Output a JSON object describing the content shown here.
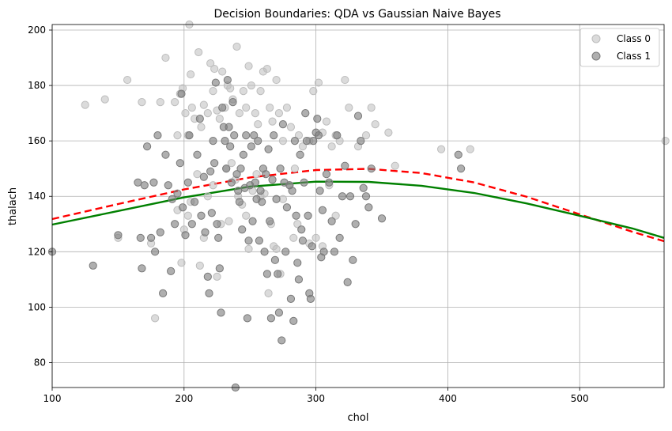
{
  "chart_data": {
    "type": "scatter",
    "title": "Decision Boundaries: QDA vs Gaussian Naive Bayes",
    "xlabel": "chol",
    "ylabel": "thalach",
    "xlim": [
      100,
      564
    ],
    "ylim": [
      71,
      202
    ],
    "x_ticks": [
      100,
      200,
      300,
      400,
      500
    ],
    "y_ticks": [
      80,
      100,
      120,
      140,
      160,
      180,
      200
    ],
    "grid": true,
    "legend_position": "top-right",
    "series": [
      {
        "name": "Class 0",
        "color": "#bdbdbd",
        "points": [
          [
            125,
            173
          ],
          [
            140,
            175
          ],
          [
            157,
            182
          ],
          [
            168,
            174
          ],
          [
            182,
            174
          ],
          [
            186,
            190
          ],
          [
            193,
            174
          ],
          [
            195,
            162
          ],
          [
            197,
            177
          ],
          [
            199,
            179
          ],
          [
            201,
            170
          ],
          [
            203,
            162
          ],
          [
            204,
            202
          ],
          [
            205,
            184
          ],
          [
            206,
            172
          ],
          [
            208,
            168
          ],
          [
            211,
            192
          ],
          [
            213,
            165
          ],
          [
            215,
            173
          ],
          [
            218,
            170
          ],
          [
            220,
            188
          ],
          [
            222,
            178
          ],
          [
            223,
            186
          ],
          [
            225,
            171
          ],
          [
            227,
            168
          ],
          [
            229,
            185
          ],
          [
            231,
            172
          ],
          [
            233,
            180
          ],
          [
            235,
            179
          ],
          [
            237,
            175
          ],
          [
            240,
            194
          ],
          [
            242,
            170
          ],
          [
            245,
            178
          ],
          [
            247,
            172
          ],
          [
            249,
            187
          ],
          [
            251,
            180
          ],
          [
            254,
            170
          ],
          [
            256,
            166
          ],
          [
            258,
            178
          ],
          [
            260,
            185
          ],
          [
            263,
            186
          ],
          [
            265,
            172
          ],
          [
            267,
            167
          ],
          [
            270,
            182
          ],
          [
            272,
            170
          ],
          [
            275,
            160
          ],
          [
            278,
            172
          ],
          [
            281,
            165
          ],
          [
            284,
            150
          ],
          [
            287,
            162
          ],
          [
            290,
            158
          ],
          [
            295,
            160
          ],
          [
            298,
            178
          ],
          [
            302,
            181
          ],
          [
            305,
            163
          ],
          [
            308,
            167
          ],
          [
            312,
            158
          ],
          [
            315,
            162
          ],
          [
            318,
            160
          ],
          [
            322,
            182
          ],
          [
            325,
            172
          ],
          [
            332,
            158
          ],
          [
            338,
            162
          ],
          [
            342,
            172
          ],
          [
            345,
            166
          ],
          [
            355,
            163
          ],
          [
            360,
            151
          ],
          [
            395,
            157
          ],
          [
            417,
            157
          ],
          [
            565,
            160
          ],
          [
            150,
            125
          ],
          [
            175,
            123
          ],
          [
            178,
            96
          ],
          [
            195,
            135
          ],
          [
            198,
            116
          ],
          [
            200,
            128
          ],
          [
            203,
            133
          ],
          [
            205,
            138
          ],
          [
            210,
            148
          ],
          [
            212,
            115
          ],
          [
            215,
            125
          ],
          [
            218,
            140
          ],
          [
            222,
            144
          ],
          [
            225,
            111
          ],
          [
            228,
            130
          ],
          [
            232,
            150
          ],
          [
            234,
            131
          ],
          [
            236,
            152
          ],
          [
            239,
            146
          ],
          [
            241,
            140
          ],
          [
            244,
            137
          ],
          [
            247,
            133
          ],
          [
            249,
            121
          ],
          [
            252,
            142
          ],
          [
            255,
            148
          ],
          [
            258,
            140
          ],
          [
            261,
            141
          ],
          [
            264,
            105
          ],
          [
            266,
            130
          ],
          [
            268,
            122
          ],
          [
            270,
            121
          ],
          [
            273,
            112
          ],
          [
            275,
            139
          ],
          [
            280,
            144
          ],
          [
            283,
            125
          ],
          [
            286,
            130
          ],
          [
            295,
            123
          ],
          [
            300,
            125
          ],
          [
            305,
            122
          ],
          [
            310,
            144
          ],
          [
            315,
            133
          ]
        ]
      },
      {
        "name": "Class 1",
        "color": "#7a7a7a",
        "points": [
          [
            100,
            120
          ],
          [
            131,
            115
          ],
          [
            150,
            126
          ],
          [
            165,
            145
          ],
          [
            167,
            125
          ],
          [
            168,
            114
          ],
          [
            170,
            144
          ],
          [
            172,
            158
          ],
          [
            175,
            125
          ],
          [
            177,
            145
          ],
          [
            178,
            120
          ],
          [
            180,
            162
          ],
          [
            182,
            127
          ],
          [
            184,
            105
          ],
          [
            186,
            155
          ],
          [
            188,
            144
          ],
          [
            190,
            113
          ],
          [
            191,
            139
          ],
          [
            193,
            130
          ],
          [
            195,
            141
          ],
          [
            197,
            152
          ],
          [
            198,
            177
          ],
          [
            199,
            136
          ],
          [
            201,
            126
          ],
          [
            203,
            145
          ],
          [
            204,
            162
          ],
          [
            206,
            130
          ],
          [
            208,
            138
          ],
          [
            210,
            155
          ],
          [
            212,
            168
          ],
          [
            213,
            133
          ],
          [
            215,
            147
          ],
          [
            216,
            127
          ],
          [
            218,
            111
          ],
          [
            219,
            105
          ],
          [
            220,
            149
          ],
          [
            221,
            134
          ],
          [
            222,
            160
          ],
          [
            223,
            152
          ],
          [
            224,
            181
          ],
          [
            225,
            130
          ],
          [
            226,
            125
          ],
          [
            227,
            114
          ],
          [
            228,
            98
          ],
          [
            229,
            172
          ],
          [
            230,
            165
          ],
          [
            231,
            160
          ],
          [
            232,
            150
          ],
          [
            233,
            182
          ],
          [
            234,
            165
          ],
          [
            235,
            158
          ],
          [
            236,
            145
          ],
          [
            237,
            174
          ],
          [
            238,
            162
          ],
          [
            239,
            71
          ],
          [
            240,
            148
          ],
          [
            241,
            142
          ],
          [
            242,
            138
          ],
          [
            243,
            150
          ],
          [
            244,
            128
          ],
          [
            245,
            155
          ],
          [
            246,
            143
          ],
          [
            247,
            162
          ],
          [
            248,
            96
          ],
          [
            249,
            124
          ],
          [
            250,
            144
          ],
          [
            251,
            158
          ],
          [
            252,
            131
          ],
          [
            253,
            162
          ],
          [
            254,
            145
          ],
          [
            255,
            139
          ],
          [
            256,
            160
          ],
          [
            257,
            124
          ],
          [
            258,
            142
          ],
          [
            259,
            138
          ],
          [
            260,
            150
          ],
          [
            261,
            120
          ],
          [
            262,
            148
          ],
          [
            263,
            112
          ],
          [
            264,
            157
          ],
          [
            265,
            131
          ],
          [
            266,
            96
          ],
          [
            267,
            146
          ],
          [
            268,
            162
          ],
          [
            269,
            117
          ],
          [
            270,
            139
          ],
          [
            271,
            112
          ],
          [
            272,
            98
          ],
          [
            273,
            150
          ],
          [
            274,
            88
          ],
          [
            275,
            166
          ],
          [
            276,
            145
          ],
          [
            277,
            120
          ],
          [
            278,
            136
          ],
          [
            280,
            144
          ],
          [
            281,
            103
          ],
          [
            282,
            142
          ],
          [
            283,
            95
          ],
          [
            284,
            160
          ],
          [
            285,
            133
          ],
          [
            286,
            116
          ],
          [
            287,
            110
          ],
          [
            288,
            155
          ],
          [
            289,
            128
          ],
          [
            290,
            124
          ],
          [
            291,
            145
          ],
          [
            292,
            170
          ],
          [
            293,
            160
          ],
          [
            294,
            133
          ],
          [
            295,
            105
          ],
          [
            296,
            103
          ],
          [
            297,
            122
          ],
          [
            298,
            160
          ],
          [
            300,
            163
          ],
          [
            301,
            168
          ],
          [
            302,
            162
          ],
          [
            303,
            142
          ],
          [
            304,
            118
          ],
          [
            305,
            135
          ],
          [
            306,
            120
          ],
          [
            308,
            148
          ],
          [
            310,
            145
          ],
          [
            312,
            131
          ],
          [
            314,
            120
          ],
          [
            316,
            162
          ],
          [
            318,
            125
          ],
          [
            320,
            140
          ],
          [
            322,
            151
          ],
          [
            324,
            109
          ],
          [
            326,
            140
          ],
          [
            328,
            117
          ],
          [
            330,
            130
          ],
          [
            332,
            169
          ],
          [
            334,
            160
          ],
          [
            336,
            143
          ],
          [
            338,
            140
          ],
          [
            340,
            136
          ],
          [
            342,
            150
          ],
          [
            350,
            132
          ],
          [
            408,
            155
          ],
          [
            410,
            150
          ]
        ]
      }
    ],
    "boundaries": [
      {
        "color": "#ff0000",
        "dash": true,
        "points": [
          [
            100,
            131.8
          ],
          [
            150,
            137.2
          ],
          [
            200,
            142.5
          ],
          [
            250,
            146.8
          ],
          [
            300,
            149.5
          ],
          [
            340,
            149.9
          ],
          [
            380,
            148.4
          ],
          [
            420,
            145.0
          ],
          [
            460,
            139.8
          ],
          [
            500,
            133.5
          ],
          [
            540,
            127.2
          ],
          [
            564,
            123.8
          ]
        ]
      },
      {
        "color": "#008000",
        "dash": false,
        "points": [
          [
            100,
            129.8
          ],
          [
            150,
            134.7
          ],
          [
            200,
            139.6
          ],
          [
            250,
            143.5
          ],
          [
            300,
            145.3
          ],
          [
            340,
            145.2
          ],
          [
            380,
            143.8
          ],
          [
            420,
            141.2
          ],
          [
            460,
            137.4
          ],
          [
            500,
            133.0
          ],
          [
            540,
            128.4
          ],
          [
            564,
            125.0
          ]
        ]
      }
    ]
  }
}
